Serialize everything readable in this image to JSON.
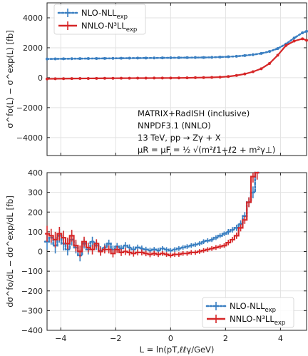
{
  "chart_data": [
    {
      "type": "line",
      "panel": "top",
      "ylabel": "σ^fo(L) − σ^exp(L) [fb]",
      "xlim": [
        -4.5,
        4.95
      ],
      "ylim": [
        -5200,
        5000
      ],
      "yticks": [
        -4000,
        -2000,
        0,
        2000,
        4000
      ],
      "ytick_labels": [
        "−4000",
        "−2000",
        "0",
        "2000",
        "4000"
      ],
      "grid": true,
      "legend": {
        "placement": "top-left",
        "entries": [
          {
            "label": "NLO-NLL",
            "sub": "exp"
          },
          {
            "label": "NNLO-N³LL",
            "sub": "exp"
          }
        ]
      },
      "annotations": [
        "MATRIX+RadISH (inclusive)",
        "NNPDF3.1 (NNLO)",
        "13 TeV, pp → Zγ + X",
        "μR = μF = ½ √(m²ℓ1+ℓ2 + m²γ⊥)"
      ],
      "series": [
        {
          "name": "NLO-NLL_exp",
          "color": "#3a7fc1",
          "style": "dotted",
          "x": [
            -4.5,
            -4.2,
            -3.9,
            -3.6,
            -3.3,
            -3.0,
            -2.7,
            -2.4,
            -2.1,
            -1.8,
            -1.5,
            -1.2,
            -0.9,
            -0.6,
            -0.3,
            0.0,
            0.3,
            0.6,
            0.9,
            1.2,
            1.5,
            1.8,
            2.1,
            2.4,
            2.7,
            3.0,
            3.3,
            3.6,
            3.9,
            4.2,
            4.5,
            4.8,
            4.95
          ],
          "y": [
            1250,
            1260,
            1265,
            1270,
            1275,
            1280,
            1285,
            1290,
            1295,
            1300,
            1305,
            1310,
            1315,
            1320,
            1325,
            1330,
            1335,
            1340,
            1345,
            1350,
            1360,
            1380,
            1400,
            1430,
            1480,
            1540,
            1620,
            1750,
            1950,
            2250,
            2650,
            3000,
            3100
          ]
        },
        {
          "name": "NNLO-N³LL_exp",
          "color": "#d62728",
          "style": "solid",
          "x": [
            -4.5,
            -4.2,
            -3.9,
            -3.6,
            -3.3,
            -3.0,
            -2.7,
            -2.4,
            -2.1,
            -1.8,
            -1.5,
            -1.2,
            -0.9,
            -0.6,
            -0.3,
            0.0,
            0.3,
            0.6,
            0.9,
            1.2,
            1.5,
            1.8,
            2.1,
            2.4,
            2.7,
            3.0,
            3.3,
            3.6,
            3.9,
            4.2,
            4.5,
            4.8,
            4.95
          ],
          "y": [
            -80,
            -70,
            -65,
            -60,
            -55,
            -50,
            -45,
            -40,
            -38,
            -35,
            -32,
            -30,
            -28,
            -25,
            -22,
            -20,
            -15,
            -10,
            0,
            10,
            20,
            40,
            80,
            150,
            250,
            400,
            600,
            950,
            1500,
            2150,
            2450,
            2600,
            2500
          ]
        }
      ]
    },
    {
      "type": "line",
      "panel": "bottom",
      "xlabel": "L = ln(pT,ℓℓγ/GeV)",
      "ylabel": "dσ^fo/dL − dσ^exp/dL [fb]",
      "xlim": [
        -4.5,
        4.95
      ],
      "ylim": [
        -400,
        400
      ],
      "xticks": [
        -4,
        -2,
        0,
        2,
        4
      ],
      "xtick_labels": [
        "−4",
        "−2",
        "0",
        "2",
        "4"
      ],
      "yticks": [
        -400,
        -300,
        -200,
        -100,
        0,
        100,
        200,
        300,
        400
      ],
      "ytick_labels": [
        "−400",
        "−300",
        "−200",
        "−100",
        "0",
        "100",
        "200",
        "300",
        "400"
      ],
      "grid": true,
      "legend": {
        "placement": "bottom-right",
        "entries": [
          {
            "label": "NLO-NLL",
            "sub": "exp"
          },
          {
            "label": "NNLO-N³LL",
            "sub": "exp"
          }
        ]
      },
      "series": [
        {
          "name": "NLO-NLL_exp",
          "color": "#3a7fc1",
          "style": "dotted-step",
          "x": [
            -4.5,
            -4.35,
            -4.2,
            -4.05,
            -3.9,
            -3.75,
            -3.6,
            -3.45,
            -3.3,
            -3.15,
            -3.0,
            -2.85,
            -2.7,
            -2.55,
            -2.4,
            -2.25,
            -2.1,
            -1.95,
            -1.8,
            -1.65,
            -1.5,
            -1.35,
            -1.2,
            -1.05,
            -0.9,
            -0.75,
            -0.6,
            -0.45,
            -0.3,
            -0.15,
            0.0,
            0.15,
            0.3,
            0.45,
            0.6,
            0.75,
            0.9,
            1.05,
            1.2,
            1.35,
            1.5,
            1.65,
            1.8,
            1.95,
            2.1,
            2.25,
            2.4,
            2.55,
            2.7,
            2.85,
            3.0,
            3.15
          ],
          "y": [
            50,
            70,
            30,
            80,
            40,
            10,
            60,
            20,
            -20,
            40,
            10,
            50,
            30,
            5,
            20,
            40,
            10,
            25,
            15,
            30,
            20,
            10,
            20,
            15,
            10,
            5,
            10,
            5,
            15,
            10,
            5,
            10,
            15,
            20,
            25,
            30,
            35,
            40,
            50,
            55,
            60,
            70,
            80,
            90,
            100,
            110,
            120,
            140,
            180,
            250,
            300,
            400
          ],
          "err": [
            40,
            35,
            40,
            35,
            35,
            30,
            30,
            30,
            30,
            25,
            25,
            25,
            22,
            22,
            20,
            20,
            20,
            18,
            18,
            18,
            16,
            16,
            15,
            15,
            14,
            14,
            13,
            13,
            12,
            12,
            12,
            12,
            12,
            12,
            12,
            12,
            12,
            12,
            12,
            12,
            12,
            12,
            12,
            12,
            14,
            14,
            16,
            18,
            20,
            25,
            30,
            35
          ]
        },
        {
          "name": "NNLO-N³LL_exp",
          "color": "#d62728",
          "style": "solid-step",
          "x": [
            -4.5,
            -4.35,
            -4.2,
            -4.05,
            -3.9,
            -3.75,
            -3.6,
            -3.45,
            -3.3,
            -3.15,
            -3.0,
            -2.85,
            -2.7,
            -2.55,
            -2.4,
            -2.25,
            -2.1,
            -1.95,
            -1.8,
            -1.65,
            -1.5,
            -1.35,
            -1.2,
            -1.05,
            -0.9,
            -0.75,
            -0.6,
            -0.45,
            -0.3,
            -0.15,
            0.0,
            0.15,
            0.3,
            0.45,
            0.6,
            0.75,
            0.9,
            1.05,
            1.2,
            1.35,
            1.5,
            1.65,
            1.8,
            1.95,
            2.1,
            2.25,
            2.4,
            2.55,
            2.7,
            2.85,
            3.0,
            3.15
          ],
          "y": [
            90,
            80,
            60,
            90,
            70,
            40,
            80,
            30,
            0,
            50,
            20,
            10,
            40,
            0,
            10,
            10,
            -10,
            10,
            -5,
            0,
            -5,
            -10,
            -5,
            -5,
            -10,
            -15,
            -10,
            -15,
            -10,
            -15,
            -20,
            -15,
            -15,
            -10,
            -10,
            -5,
            -5,
            0,
            5,
            10,
            15,
            20,
            25,
            30,
            45,
            60,
            80,
            120,
            160,
            250,
            380,
            400
          ],
          "err": [
            40,
            35,
            40,
            35,
            35,
            30,
            30,
            30,
            30,
            25,
            25,
            25,
            22,
            22,
            20,
            20,
            20,
            18,
            18,
            18,
            16,
            16,
            15,
            15,
            14,
            14,
            13,
            13,
            12,
            12,
            12,
            12,
            12,
            12,
            12,
            12,
            12,
            12,
            12,
            12,
            12,
            12,
            12,
            12,
            14,
            14,
            16,
            18,
            20,
            25,
            30,
            35
          ]
        }
      ]
    }
  ],
  "colors": {
    "nlo": "#3a7fc1",
    "nnlo": "#d62728"
  }
}
